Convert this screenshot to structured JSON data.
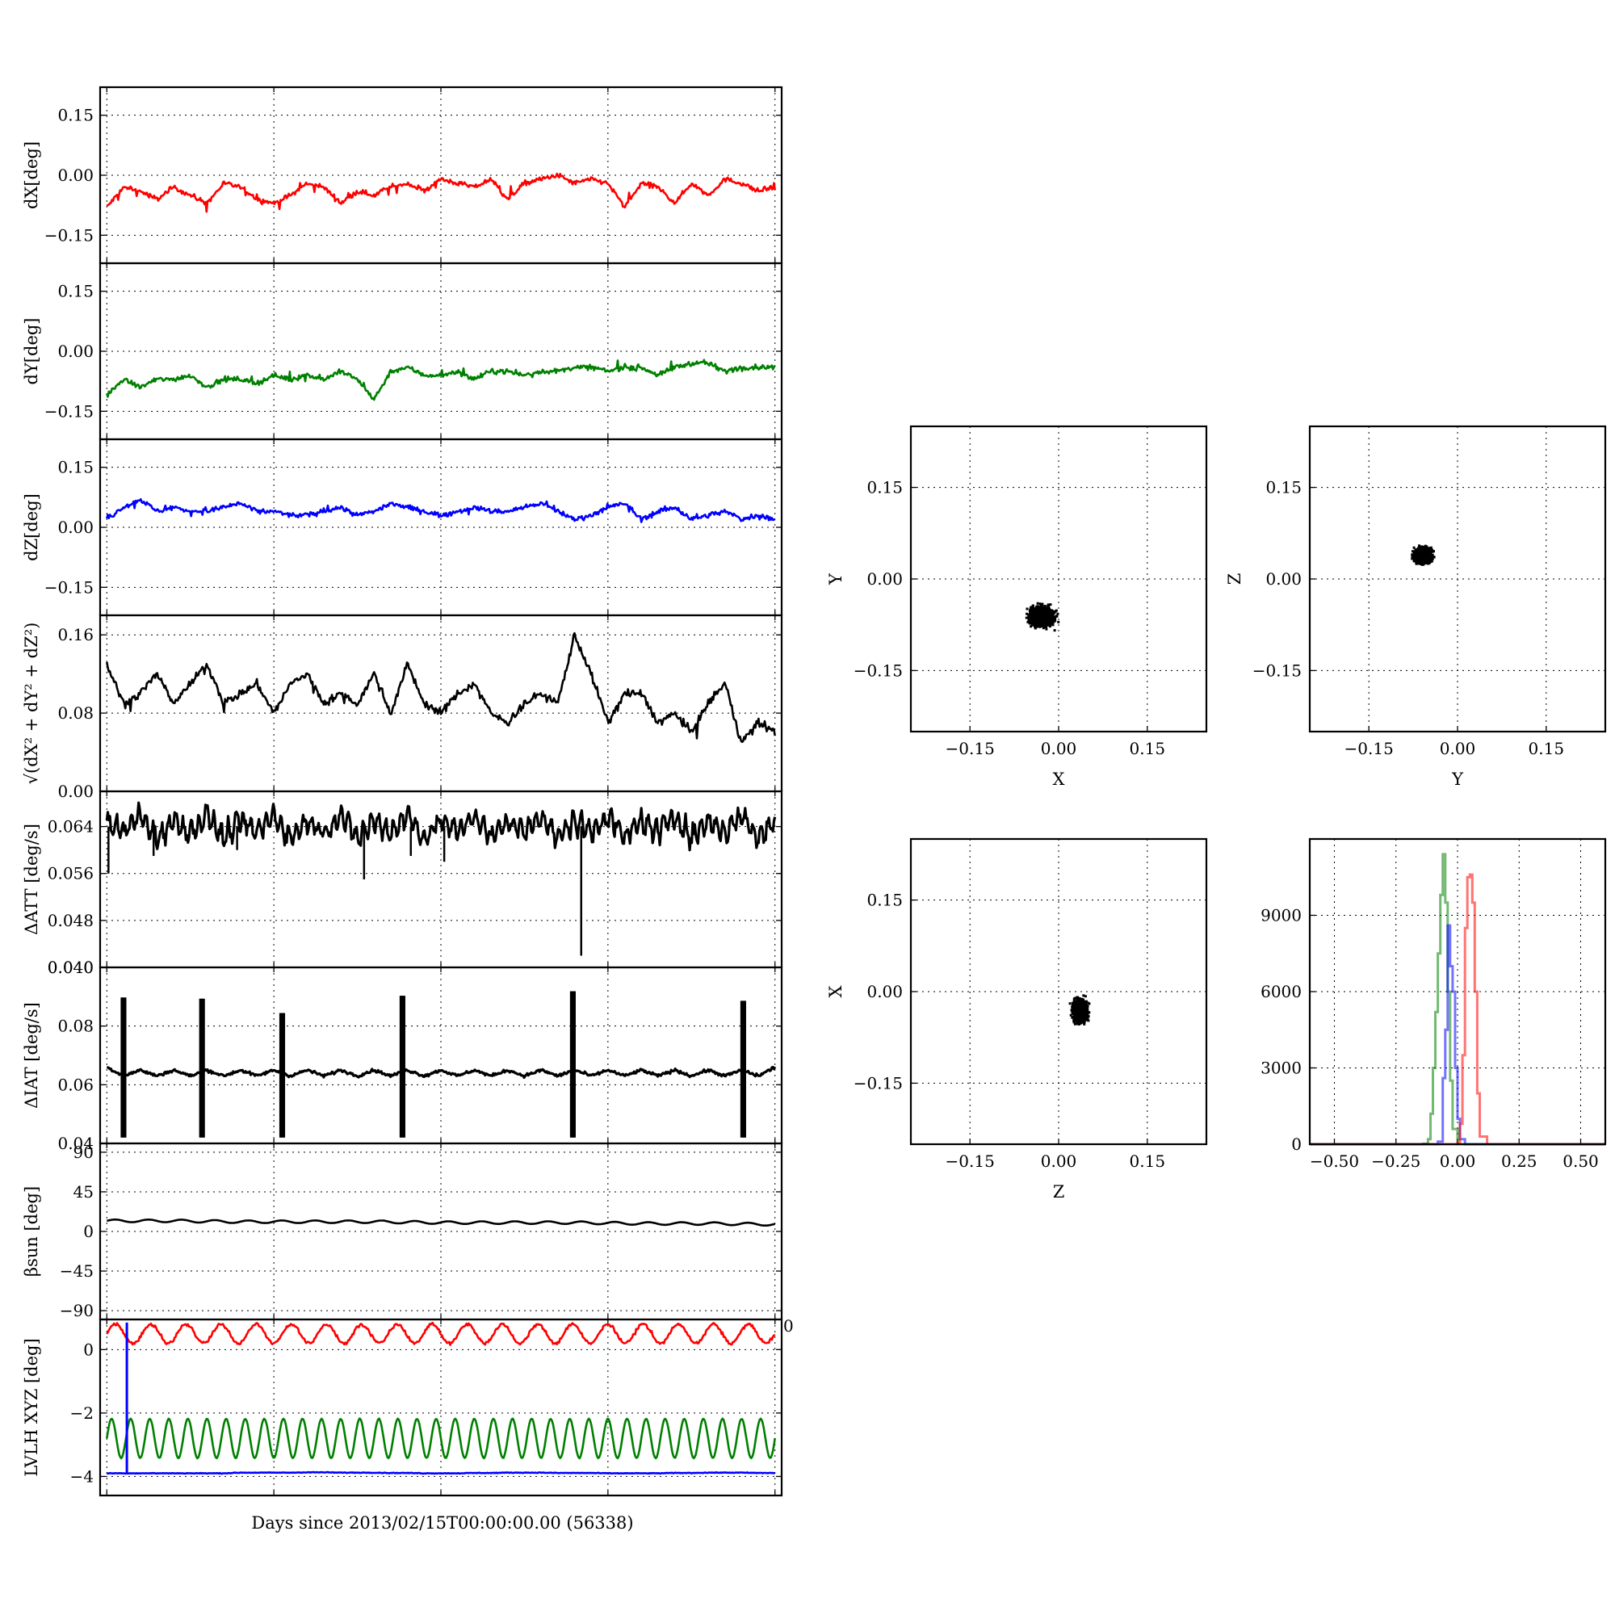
{
  "chart_data": [
    {
      "type": "line",
      "panel": "dx",
      "ylabel": "dX[deg]",
      "ylim": [
        -0.22,
        0.22
      ],
      "yticks": [
        -0.15,
        0.0,
        0.15
      ],
      "ytick_labels": [
        "−0.15",
        "0.00",
        "0.15"
      ],
      "x": [
        0,
        0.5,
        1,
        1.5,
        2,
        2.5,
        3,
        3.5,
        4,
        4.5,
        5,
        5.5,
        6,
        6.5,
        7,
        7.5,
        8,
        8.5,
        9,
        9.5,
        10,
        10.5,
        11,
        11.5,
        12,
        12.5,
        13,
        13.5,
        14,
        14.5,
        15,
        15.5,
        16,
        16.5,
        17,
        17.5,
        18,
        18.5,
        19,
        19.5,
        20
      ],
      "series": [
        {
          "color": "#ff0000",
          "values": [
            -0.08,
            -0.03,
            -0.04,
            -0.06,
            -0.03,
            -0.05,
            -0.07,
            -0.02,
            -0.03,
            -0.06,
            -0.07,
            -0.05,
            -0.02,
            -0.03,
            -0.07,
            -0.04,
            -0.05,
            -0.03,
            -0.02,
            -0.04,
            -0.01,
            -0.02,
            -0.03,
            -0.01,
            -0.06,
            -0.02,
            -0.01,
            0.0,
            -0.02,
            -0.01,
            -0.02,
            -0.08,
            -0.02,
            -0.03,
            -0.07,
            -0.02,
            -0.05,
            -0.01,
            -0.02,
            -0.04,
            -0.03
          ]
        }
      ]
    },
    {
      "type": "line",
      "panel": "dy",
      "ylabel": "dY[deg]",
      "ylim": [
        -0.22,
        0.22
      ],
      "yticks": [
        -0.15,
        0.0,
        0.15
      ],
      "ytick_labels": [
        "−0.15",
        "0.00",
        "0.15"
      ],
      "x": [
        0,
        0.5,
        1,
        1.5,
        2,
        2.5,
        3,
        3.5,
        4,
        4.5,
        5,
        5.5,
        6,
        6.5,
        7,
        7.5,
        8,
        8.5,
        9,
        9.5,
        10,
        10.5,
        11,
        11.5,
        12,
        12.5,
        13,
        13.5,
        14,
        14.5,
        15,
        15.5,
        16,
        16.5,
        17,
        17.5,
        18,
        18.5,
        19,
        19.5,
        20
      ],
      "series": [
        {
          "color": "#008000",
          "values": [
            -0.11,
            -0.07,
            -0.09,
            -0.07,
            -0.07,
            -0.06,
            -0.09,
            -0.07,
            -0.07,
            -0.08,
            -0.06,
            -0.07,
            -0.06,
            -0.07,
            -0.05,
            -0.07,
            -0.12,
            -0.05,
            -0.04,
            -0.06,
            -0.06,
            -0.05,
            -0.07,
            -0.05,
            -0.05,
            -0.06,
            -0.05,
            -0.05,
            -0.04,
            -0.04,
            -0.05,
            -0.04,
            -0.04,
            -0.06,
            -0.04,
            -0.03,
            -0.03,
            -0.05,
            -0.04,
            -0.04,
            -0.04
          ]
        }
      ]
    },
    {
      "type": "line",
      "panel": "dz",
      "ylabel": "dZ[deg]",
      "ylim": [
        -0.22,
        0.22
      ],
      "yticks": [
        -0.15,
        0.0,
        0.15
      ],
      "ytick_labels": [
        "−0.15",
        "0.00",
        "0.15"
      ],
      "x": [
        0,
        0.5,
        1,
        1.5,
        2,
        2.5,
        3,
        3.5,
        4,
        4.5,
        5,
        5.5,
        6,
        6.5,
        7,
        7.5,
        8,
        8.5,
        9,
        9.5,
        10,
        10.5,
        11,
        11.5,
        12,
        12.5,
        13,
        13.5,
        14,
        14.5,
        15,
        15.5,
        16,
        16.5,
        17,
        17.5,
        18,
        18.5,
        19,
        19.5,
        20
      ],
      "series": [
        {
          "color": "#0000ff",
          "values": [
            0.02,
            0.05,
            0.07,
            0.04,
            0.05,
            0.04,
            0.04,
            0.05,
            0.06,
            0.04,
            0.04,
            0.03,
            0.03,
            0.04,
            0.05,
            0.03,
            0.04,
            0.06,
            0.05,
            0.04,
            0.03,
            0.04,
            0.05,
            0.04,
            0.04,
            0.05,
            0.06,
            0.04,
            0.02,
            0.03,
            0.05,
            0.06,
            0.02,
            0.04,
            0.05,
            0.02,
            0.03,
            0.04,
            0.02,
            0.03,
            0.02
          ]
        }
      ]
    },
    {
      "type": "line",
      "panel": "norm",
      "ylabel": "√(dX² + dY² + dZ²)",
      "ylim": [
        0.0,
        0.18
      ],
      "yticks": [
        0.0,
        0.08,
        0.16
      ],
      "ytick_labels": [
        "0.00",
        "0.08",
        "0.16"
      ],
      "x": [
        0,
        0.5,
        1,
        1.5,
        2,
        2.5,
        3,
        3.5,
        4,
        4.5,
        5,
        5.5,
        6,
        6.5,
        7,
        7.5,
        8,
        8.5,
        9,
        9.5,
        10,
        10.5,
        11,
        11.5,
        12,
        12.5,
        13,
        13.5,
        14,
        14.5,
        15,
        15.5,
        16,
        16.5,
        17,
        17.5,
        18,
        18.5,
        19,
        19.5,
        20
      ],
      "series": [
        {
          "color": "#000000",
          "values": [
            0.13,
            0.09,
            0.1,
            0.12,
            0.09,
            0.11,
            0.13,
            0.09,
            0.1,
            0.11,
            0.08,
            0.11,
            0.12,
            0.09,
            0.1,
            0.09,
            0.12,
            0.08,
            0.13,
            0.09,
            0.08,
            0.1,
            0.11,
            0.08,
            0.07,
            0.09,
            0.1,
            0.09,
            0.16,
            0.12,
            0.07,
            0.1,
            0.1,
            0.07,
            0.08,
            0.06,
            0.09,
            0.11,
            0.05,
            0.07,
            0.06
          ]
        }
      ]
    },
    {
      "type": "line",
      "panel": "datt",
      "ylabel": "ΔATT [deg/s]",
      "ylim": [
        0.04,
        0.07
      ],
      "yticks": [
        0.04,
        0.048,
        0.056,
        0.064
      ],
      "ytick_labels": [
        "0.040",
        "0.048",
        "0.056",
        "0.064"
      ],
      "x": [
        0,
        0.5,
        1,
        1.5,
        2,
        2.5,
        3,
        3.5,
        4,
        4.5,
        5,
        5.5,
        6,
        6.5,
        7,
        7.5,
        8,
        8.5,
        9,
        9.5,
        10,
        10.5,
        11,
        11.5,
        12,
        12.5,
        13,
        13.5,
        14,
        14.5,
        15,
        15.5,
        16,
        16.5,
        17,
        17.5,
        18,
        18.5,
        19,
        19.5,
        20
      ],
      "series": [
        {
          "color": "#000000",
          "values": [
            0.065,
            0.063,
            0.066,
            0.062,
            0.065,
            0.063,
            0.066,
            0.062,
            0.065,
            0.063,
            0.066,
            0.062,
            0.065,
            0.063,
            0.066,
            0.062,
            0.065,
            0.063,
            0.066,
            0.062,
            0.065,
            0.063,
            0.066,
            0.062,
            0.065,
            0.063,
            0.066,
            0.062,
            0.065,
            0.063,
            0.066,
            0.062,
            0.065,
            0.063,
            0.066,
            0.062,
            0.065,
            0.063,
            0.066,
            0.062,
            0.065
          ]
        }
      ]
    },
    {
      "type": "line",
      "panel": "diat",
      "ylabel": "ΔIAT [deg/s]",
      "ylim": [
        0.04,
        0.1
      ],
      "yticks": [
        0.04,
        0.06,
        0.08
      ],
      "ytick_labels": [
        "0.04",
        "0.06",
        "0.08"
      ],
      "x": [
        0,
        0.5,
        1,
        1.5,
        2,
        2.5,
        3,
        3.5,
        4,
        4.5,
        5,
        5.5,
        6,
        6.5,
        7,
        7.5,
        8,
        8.5,
        9,
        9.5,
        10,
        10.5,
        11,
        11.5,
        12,
        12.5,
        13,
        13.5,
        14,
        14.5,
        15,
        15.5,
        16,
        16.5,
        17,
        17.5,
        18,
        18.5,
        19,
        19.5,
        20
      ],
      "series": [
        {
          "color": "#000000",
          "values": [
            0.066,
            0.063,
            0.065,
            0.063,
            0.065,
            0.063,
            0.065,
            0.063,
            0.065,
            0.063,
            0.065,
            0.063,
            0.065,
            0.063,
            0.065,
            0.063,
            0.065,
            0.063,
            0.065,
            0.063,
            0.065,
            0.063,
            0.065,
            0.063,
            0.065,
            0.063,
            0.065,
            0.063,
            0.065,
            0.063,
            0.065,
            0.063,
            0.065,
            0.063,
            0.065,
            0.063,
            0.065,
            0.063,
            0.065,
            0.063,
            0.066
          ]
        }
      ]
    },
    {
      "type": "line",
      "panel": "beta",
      "ylabel": "βsun [deg]",
      "ylim": [
        -100,
        100
      ],
      "yticks": [
        -90,
        -45,
        0,
        45,
        90
      ],
      "ytick_labels": [
        "−90",
        "−45",
        "0",
        "45",
        "90"
      ],
      "x": [
        0,
        2,
        4,
        6,
        8,
        10,
        12,
        14,
        16,
        18,
        20
      ],
      "series": [
        {
          "color": "#000000",
          "values": [
            12,
            12,
            11,
            11,
            11,
            10,
            10,
            10,
            9,
            9,
            8
          ]
        }
      ]
    },
    {
      "type": "line",
      "panel": "lvlh",
      "ylabel": "LVLH XYZ [deg]",
      "ylim": [
        -4.6,
        0.95
      ],
      "yticks": [
        -4,
        -2,
        0
      ],
      "ytick_labels": [
        "−4",
        "−2",
        "0"
      ],
      "right_tick_label": "0",
      "x": [
        0,
        0.5,
        1,
        1.5,
        2,
        2.5,
        3,
        3.5,
        4,
        4.5,
        5,
        5.5,
        6,
        6.5,
        7,
        7.5,
        8,
        8.5,
        9,
        9.5,
        10,
        10.5,
        11,
        11.5,
        12,
        12.5,
        13,
        13.5,
        14,
        14.5,
        15,
        15.5,
        16,
        16.5,
        17,
        17.5,
        18,
        18.5,
        19,
        19.5,
        20
      ],
      "series": [
        {
          "color": "#ff0000",
          "values": [
            0.4,
            0.8,
            0.2,
            0.5,
            0.7,
            0.3,
            0.6,
            0.85,
            0.4,
            0.2,
            0.6,
            0.8,
            0.3,
            0.5,
            0.75,
            0.3,
            0.2,
            0.6,
            0.8,
            0.4,
            0.3,
            0.7,
            0.5,
            0.2,
            0.6,
            0.75,
            0.3,
            0.4,
            0.7,
            0.5,
            0.2,
            0.6,
            0.8,
            0.3,
            0.4,
            0.7,
            0.5,
            0.2,
            0.6,
            0.8,
            0.4
          ]
        },
        {
          "color": "#008000",
          "values": [
            -2.2,
            -3.4,
            -2.2,
            -3.4,
            -2.2,
            -3.4,
            -2.2,
            -3.4,
            -2.2,
            -3.4,
            -2.2,
            -3.4,
            -2.2,
            -3.4,
            -2.2,
            -3.4,
            -2.2,
            -3.4,
            -2.2,
            -3.4,
            -2.2,
            -3.4,
            -2.2,
            -3.4,
            -2.2,
            -3.4,
            -2.2,
            -3.4,
            -2.2,
            -3.4,
            -2.2,
            -3.4,
            -2.2,
            -3.4,
            -2.2,
            -3.4,
            -2.2,
            -3.4,
            -2.2,
            -3.4,
            -2.2
          ]
        },
        {
          "color": "#0000ff",
          "values": [
            -3.9,
            -3.9,
            -3.9,
            -3.9,
            -3.9,
            -3.9,
            -3.9,
            -3.9,
            -3.88,
            -3.88,
            -3.88,
            -3.88,
            -3.87,
            -3.87,
            -3.88,
            -3.88,
            -3.88,
            -3.89,
            -3.89,
            -3.9,
            -3.9,
            -3.9,
            -3.89,
            -3.89,
            -3.88,
            -3.88,
            -3.88,
            -3.89,
            -3.89,
            -3.89,
            -3.9,
            -3.9,
            -3.9,
            -3.9,
            -3.89,
            -3.89,
            -3.88,
            -3.88,
            -3.88,
            -3.89,
            -3.89
          ]
        }
      ],
      "spike": {
        "x": 0.6,
        "y_from": -3.9,
        "y_to": 0.85,
        "color": "#0000ff"
      }
    },
    {
      "type": "scatter",
      "panel": "xy",
      "xlabel": "X",
      "ylabel": "Y",
      "xlim": [
        -0.25,
        0.25
      ],
      "ylim": [
        -0.25,
        0.25
      ],
      "ticks": [
        -0.15,
        0.0,
        0.15
      ],
      "tick_labels": [
        "−0.15",
        "0.00",
        "0.15"
      ],
      "cluster": {
        "center": [
          -0.03,
          -0.06
        ],
        "spread": [
          0.025,
          0.02
        ]
      }
    },
    {
      "type": "scatter",
      "panel": "yz",
      "xlabel": "Y",
      "ylabel": "Z",
      "xlim": [
        -0.25,
        0.25
      ],
      "ylim": [
        -0.25,
        0.25
      ],
      "ticks": [
        -0.15,
        0.0,
        0.15
      ],
      "tick_labels": [
        "−0.15",
        "0.00",
        "0.15"
      ],
      "cluster": {
        "center": [
          -0.06,
          0.04
        ],
        "spread": [
          0.018,
          0.015
        ]
      }
    },
    {
      "type": "scatter",
      "panel": "zx",
      "xlabel": "Z",
      "ylabel": "X",
      "xlim": [
        -0.25,
        0.25
      ],
      "ylim": [
        -0.25,
        0.25
      ],
      "ticks": [
        -0.15,
        0.0,
        0.15
      ],
      "tick_labels": [
        "−0.15",
        "0.00",
        "0.15"
      ],
      "cluster": {
        "center": [
          0.035,
          -0.03
        ],
        "spread": [
          0.015,
          0.022
        ]
      }
    },
    {
      "type": "line",
      "panel": "hist",
      "xlim": [
        -0.6,
        0.6
      ],
      "ylim": [
        0,
        12000
      ],
      "xticks": [
        -0.5,
        -0.25,
        0.0,
        0.25,
        0.5
      ],
      "xtick_labels": [
        "−0.50",
        "−0.25",
        "0.00",
        "0.25",
        "0.50"
      ],
      "yticks": [
        0,
        3000,
        6000,
        9000
      ],
      "ytick_labels": [
        "0",
        "3000",
        "6000",
        "9000"
      ],
      "series": [
        {
          "color": "#008000",
          "x": [
            -0.6,
            -0.2,
            -0.14,
            -0.12,
            -0.11,
            -0.1,
            -0.09,
            -0.08,
            -0.07,
            -0.06,
            -0.05,
            -0.04,
            -0.03,
            -0.02,
            0.0,
            0.6
          ],
          "values": [
            0,
            0,
            20,
            200,
            1200,
            3000,
            5200,
            7500,
            9800,
            11400,
            9500,
            6000,
            2500,
            600,
            0,
            0
          ]
        },
        {
          "color": "#0000ff",
          "x": [
            -0.6,
            -0.12,
            -0.08,
            -0.06,
            -0.05,
            -0.04,
            -0.03,
            -0.02,
            -0.01,
            0.0,
            0.01,
            0.03,
            0.6
          ],
          "values": [
            0,
            0,
            100,
            2600,
            4500,
            8600,
            7000,
            6000,
            3000,
            1000,
            200,
            0,
            0
          ]
        },
        {
          "color": "#ff0000",
          "x": [
            -0.6,
            -0.03,
            0.0,
            0.01,
            0.02,
            0.03,
            0.04,
            0.05,
            0.06,
            0.07,
            0.08,
            0.09,
            0.12,
            0.6
          ],
          "values": [
            0,
            0,
            50,
            800,
            3500,
            8500,
            10500,
            10600,
            9500,
            6000,
            2000,
            300,
            0,
            0
          ]
        }
      ]
    }
  ],
  "xlabel": "Days since 2013/02/15T00:00:00.00 (56338)",
  "overlap_label": "0.040",
  "colors": {
    "x": "#ff0000",
    "y": "#008000",
    "z": "#0000ff",
    "k": "#000000"
  }
}
